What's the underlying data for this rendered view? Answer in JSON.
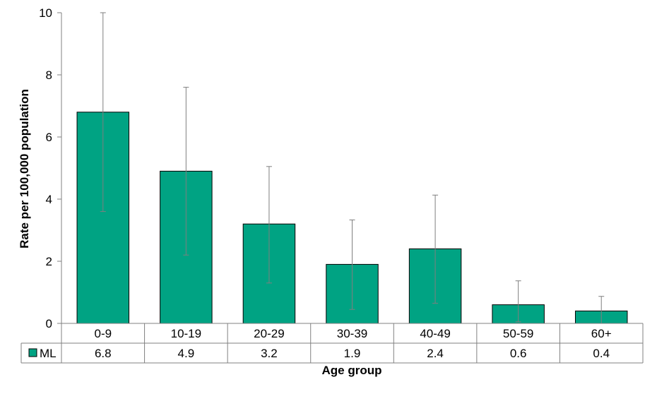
{
  "chart_data": {
    "type": "bar",
    "xlabel": "Age group",
    "ylabel": "Rate per 100,000 population",
    "categories": [
      "0-9",
      "10-19",
      "20-29",
      "30-39",
      "40-49",
      "50-59",
      "60+"
    ],
    "series": [
      {
        "name": "ML",
        "color": "#00a383",
        "values": [
          6.8,
          4.9,
          3.2,
          1.9,
          2.4,
          0.6,
          0.4
        ],
        "labels": [
          "6.8",
          "4.9",
          "3.2",
          "1.9",
          "2.4",
          "0.6",
          "0.4"
        ],
        "error_low": [
          3.6,
          2.2,
          1.3,
          0.45,
          0.65,
          0.05,
          0.0
        ],
        "error_high": [
          10.0,
          7.6,
          5.05,
          3.33,
          4.13,
          1.37,
          0.87
        ]
      }
    ],
    "ylim": [
      0,
      10
    ],
    "yticks": [
      0,
      2,
      4,
      6,
      8,
      10
    ],
    "ytick_labels": [
      "0",
      "2",
      "4",
      "6",
      "8",
      "10"
    ],
    "grid": false,
    "data_table": true
  }
}
